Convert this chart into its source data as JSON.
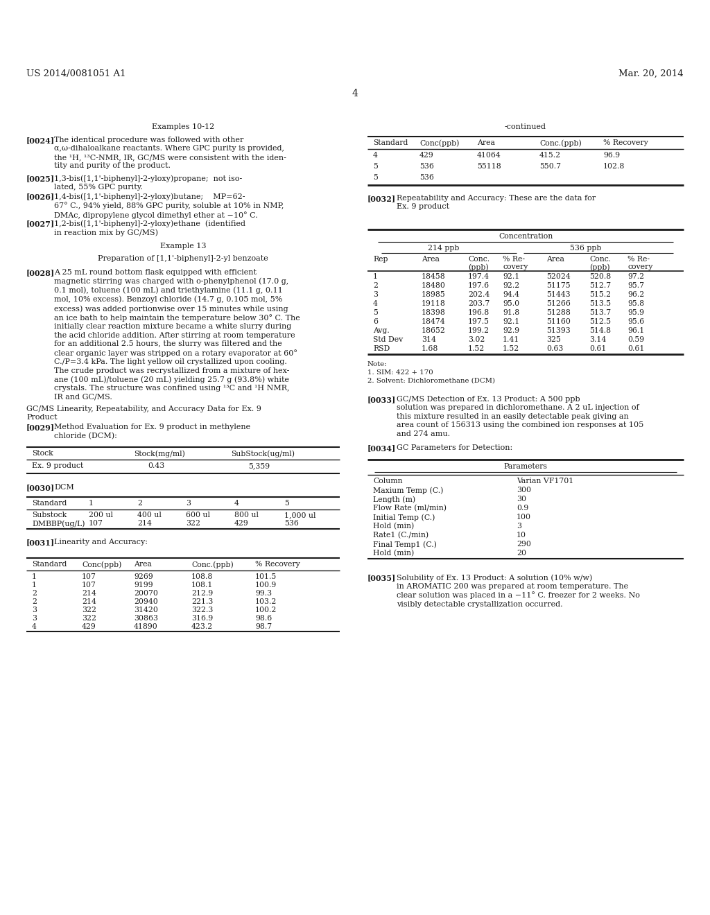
{
  "bg_color": "#ffffff",
  "text_color": "#231f20",
  "header_left": "US 2014/0081051 A1",
  "header_right": "Mar. 20, 2014",
  "page_number": "4"
}
